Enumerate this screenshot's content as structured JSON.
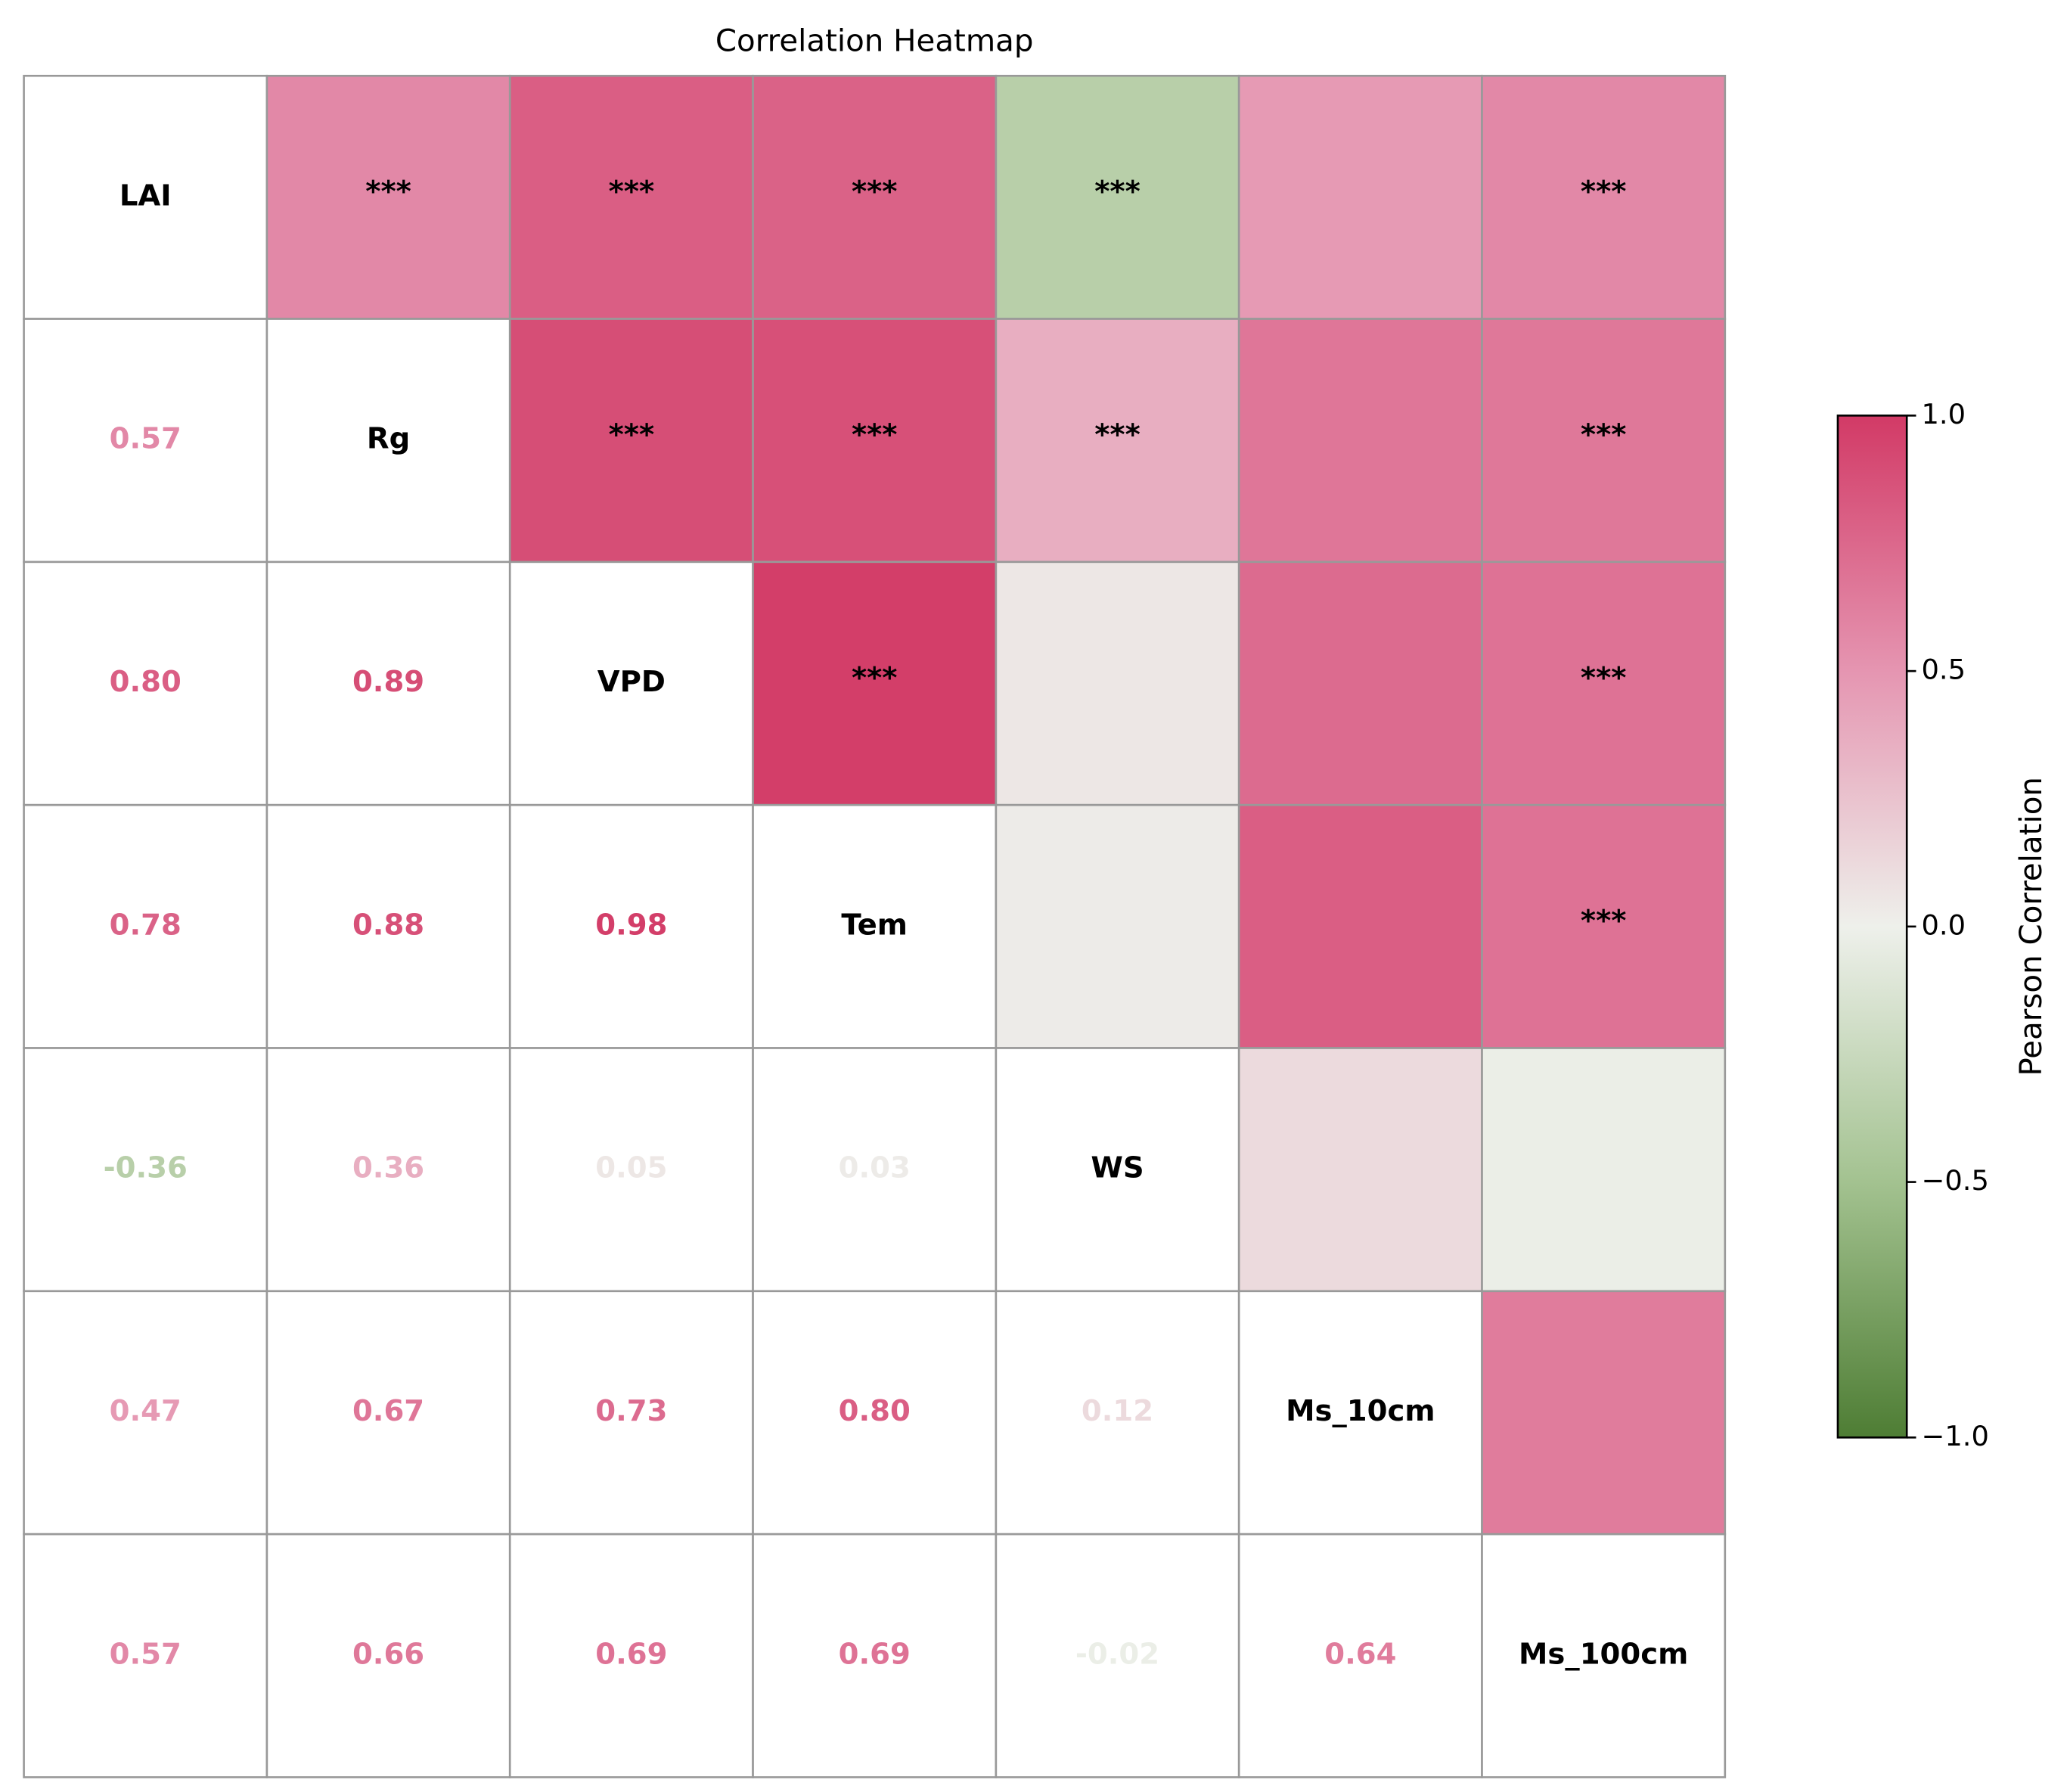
{
  "chart_data": {
    "type": "heatmap",
    "title": "Correlation Heatmap",
    "labels": [
      "LAI",
      "Rg",
      "VPD",
      "Tem",
      "WS",
      "Ms_10cm",
      "Ms_100cm"
    ],
    "values": [
      [
        0.57
      ],
      [
        0.8,
        0.89
      ],
      [
        0.78,
        0.88,
        0.98
      ],
      [
        -0.36,
        0.36,
        0.05,
        0.03
      ],
      [
        0.47,
        0.67,
        0.73,
        0.8,
        0.12
      ],
      [
        0.57,
        0.66,
        0.69,
        0.69,
        -0.02,
        0.64
      ]
    ],
    "value_labels": [
      [
        "0.57"
      ],
      [
        "0.80",
        "0.89"
      ],
      [
        "0.78",
        "0.88",
        "0.98"
      ],
      [
        "-0.36",
        "0.36",
        "0.05",
        "0.03"
      ],
      [
        "0.47",
        "0.67",
        "0.73",
        "0.80",
        "0.12"
      ],
      [
        "0.57",
        "0.66",
        "0.69",
        "0.69",
        "-0.02",
        "0.64"
      ]
    ],
    "stars": [
      [
        "***",
        "***",
        "***",
        "***",
        null,
        "***"
      ],
      [
        "***",
        "***",
        "***",
        null,
        "***"
      ],
      [
        "***",
        null,
        null,
        "***"
      ],
      [
        null,
        null,
        "***"
      ],
      [
        null,
        null
      ],
      [
        null
      ]
    ],
    "colormap": [
      "#4e7d34",
      "#a3c290",
      "#eef0eb",
      "#e595b1",
      "#d23a66"
    ],
    "clim": [
      -1,
      1
    ],
    "cticks": [
      {
        "value": -1,
        "label": "−1.0"
      },
      {
        "value": -0.5,
        "label": "−0.5"
      },
      {
        "value": 0,
        "label": "0.0"
      },
      0.5,
      {
        "value": 1,
        "label": "1.0"
      }
    ],
    "colorbar_label": "Pearson Correlation"
  }
}
